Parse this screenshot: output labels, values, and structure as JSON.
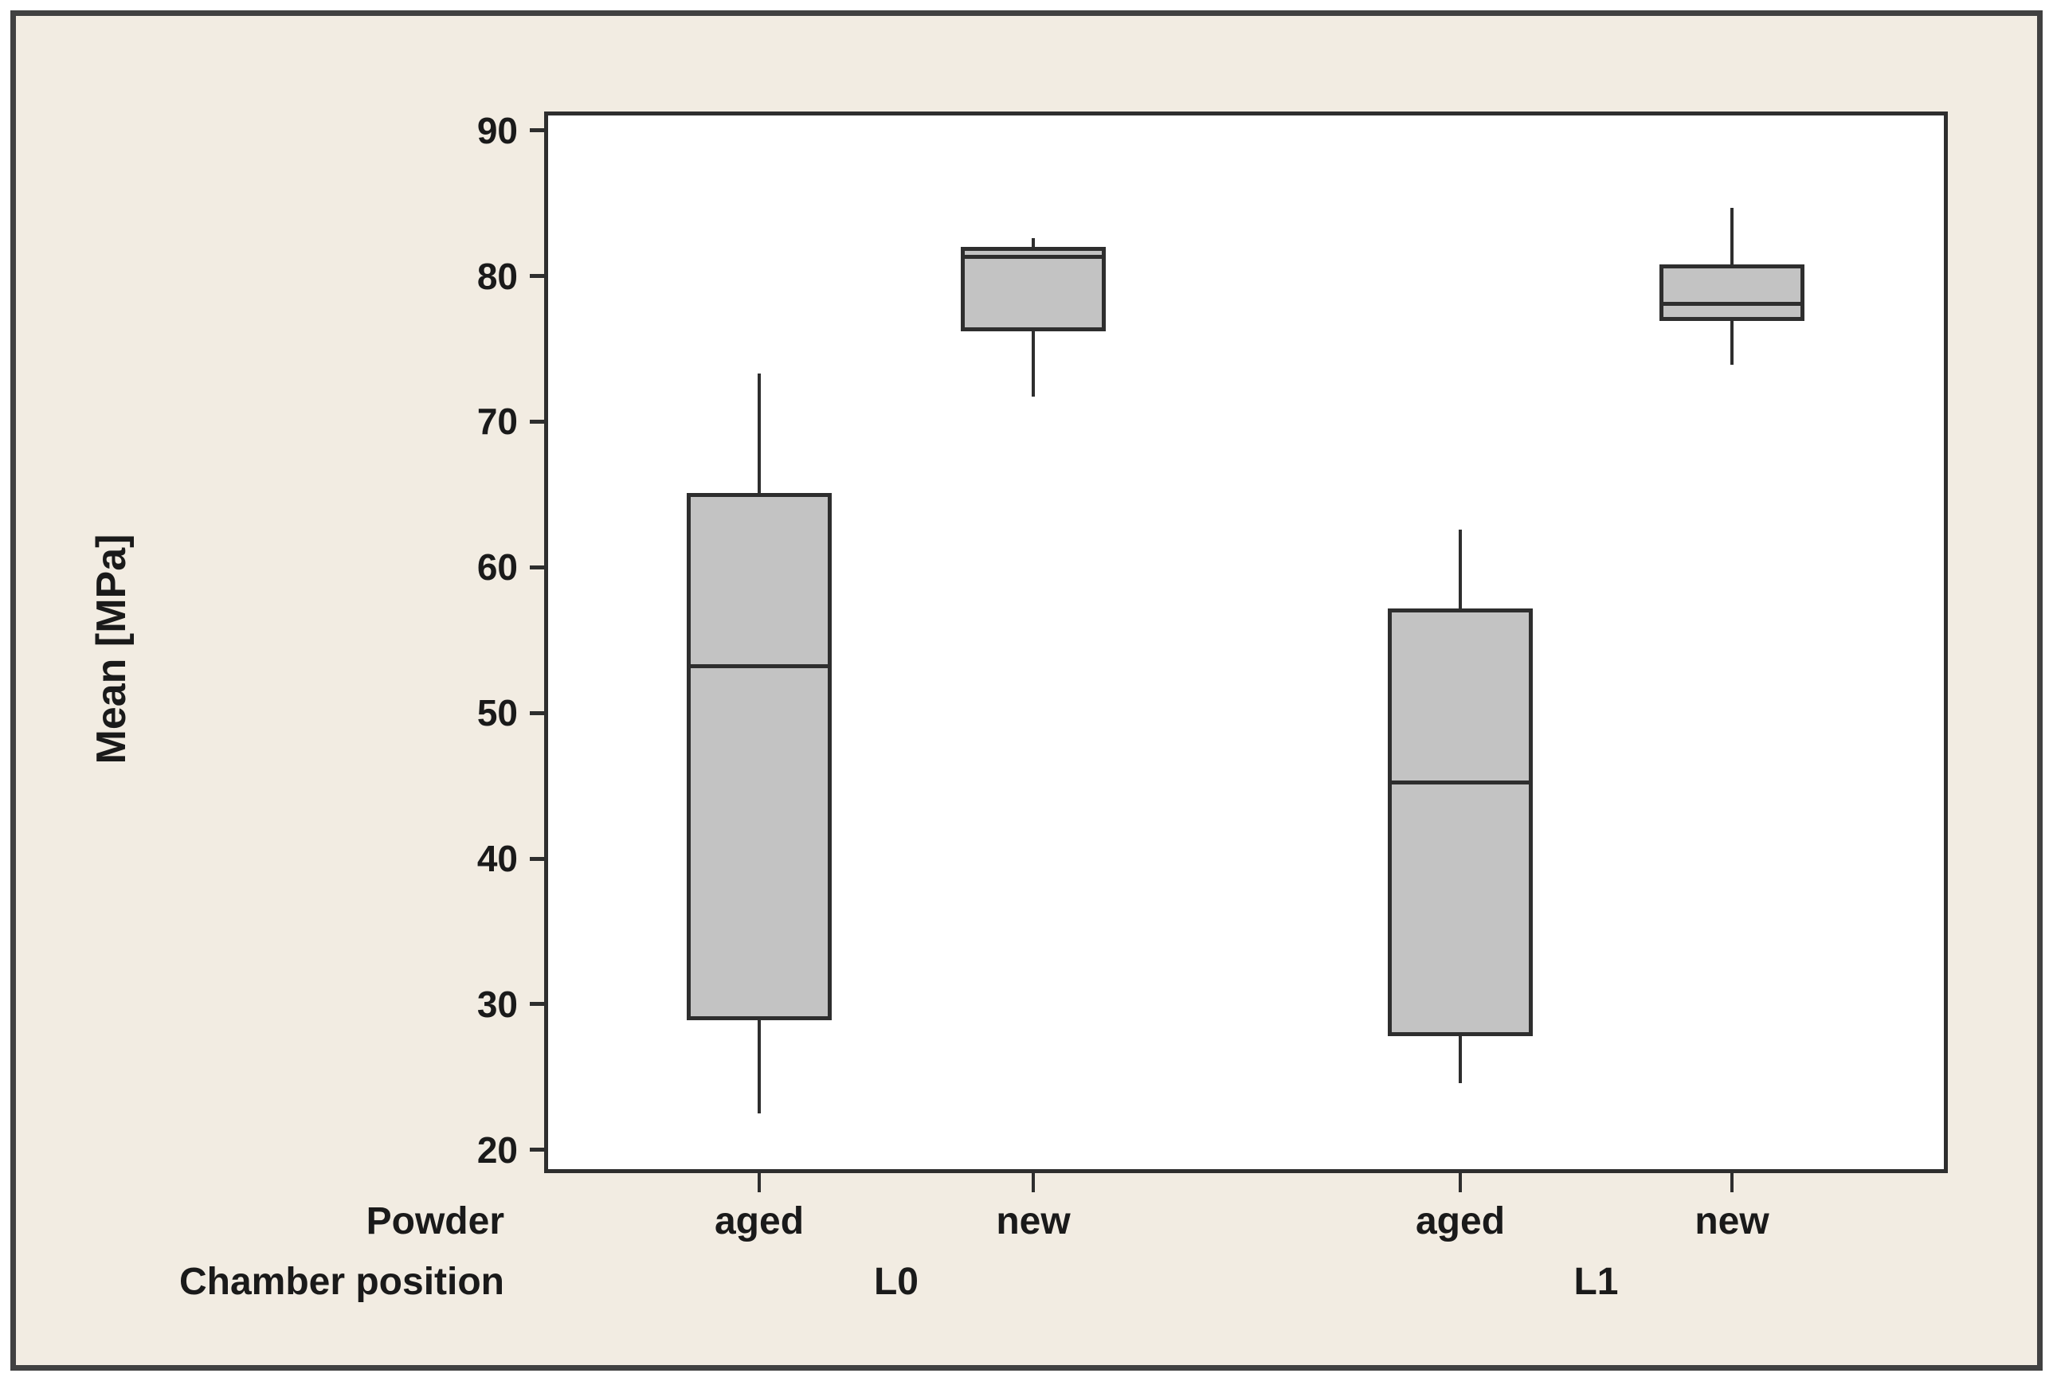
{
  "colors": {
    "page_background": "#ffffff",
    "frame_border": "#414141",
    "graph_background": "#f2ece2",
    "plot_background": "#ffffff",
    "line": "#2e2e2e",
    "box_fill": "#c3c3c3",
    "text": "#1a1a1a"
  },
  "chart_data": {
    "type": "box",
    "title": "",
    "ylabel": "Mean [MPa]",
    "y_ticks": [
      90,
      80,
      70,
      60,
      50,
      40,
      30,
      20
    ],
    "ylim": [
      18.4,
      91.3
    ],
    "grid": "off",
    "legend": "none",
    "factor_rows": {
      "row1_label": "Powder",
      "row2_label": "Chamber position"
    },
    "groups": [
      {
        "chamber_position": "L0",
        "boxes": [
          {
            "powder": "aged",
            "whisker_low": 22.5,
            "q1": 28.9,
            "median": 53.2,
            "q3": 65.1,
            "whisker_high": 73.3
          },
          {
            "powder": "new",
            "whisker_low": 71.7,
            "q1": 76.2,
            "median": 81.3,
            "q3": 82.0,
            "whisker_high": 82.6
          }
        ]
      },
      {
        "chamber_position": "L1",
        "boxes": [
          {
            "powder": "aged",
            "whisker_low": 24.6,
            "q1": 27.8,
            "median": 45.2,
            "q3": 57.2,
            "whisker_high": 62.6
          },
          {
            "powder": "new",
            "whisker_low": 73.9,
            "q1": 76.9,
            "median": 78.1,
            "q3": 80.8,
            "whisker_high": 84.7
          }
        ]
      }
    ]
  }
}
